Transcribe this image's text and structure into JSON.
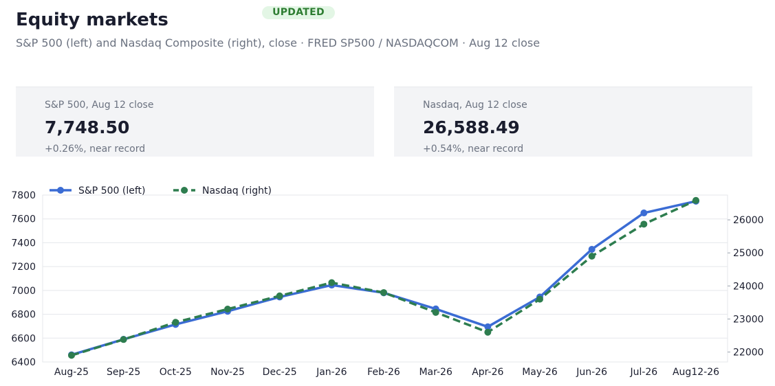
{
  "header": {
    "title": "Equity markets",
    "badge": "UPDATED",
    "subtitle": "S&P 500 (left) and Nasdaq Composite (right), close · FRED SP500 / NASDAQCOM · Aug 12 close"
  },
  "cards": [
    {
      "label": "S&P 500, Aug 12 close",
      "value": "7,748.50",
      "note": "+0.26%, near record"
    },
    {
      "label": "Nasdaq, Aug 12 close",
      "value": "26,588.49",
      "note": "+0.54%, near record"
    }
  ],
  "colors": {
    "sp500": "#3b6cd4",
    "nasdaq": "#2e7d4f",
    "badge_bg": "#e3f6e5",
    "badge_text": "#2e7d32"
  },
  "chart_data": {
    "type": "line",
    "categories": [
      "Aug-25",
      "Sep-25",
      "Oct-25",
      "Nov-25",
      "Dec-25",
      "Jan-26",
      "Feb-26",
      "Mar-26",
      "Apr-26",
      "May-26",
      "Jun-26",
      "Jul-26",
      "Aug12-26"
    ],
    "series": [
      {
        "name": "S&P 500 (left)",
        "axis": "left",
        "style": "solid",
        "values": [
          6460,
          6590,
          6715,
          6825,
          6945,
          7045,
          6980,
          6845,
          6695,
          6945,
          7345,
          7650,
          7748.5
        ]
      },
      {
        "name": "Nasdaq (right)",
        "axis": "right",
        "style": "dashed",
        "values": [
          21900,
          22380,
          22900,
          23300,
          23700,
          24100,
          23800,
          23200,
          22600,
          23600,
          24900,
          25870,
          26588.49
        ]
      }
    ],
    "ylim_left": [
      6400,
      7800
    ],
    "yticks_left": [
      6400,
      6600,
      6800,
      7000,
      7200,
      7400,
      7600,
      7800
    ],
    "ylim_right": [
      21700,
      26750
    ],
    "yticks_right": [
      22000,
      23000,
      24000,
      25000,
      26000
    ],
    "grid": true,
    "legend": "top-left"
  }
}
